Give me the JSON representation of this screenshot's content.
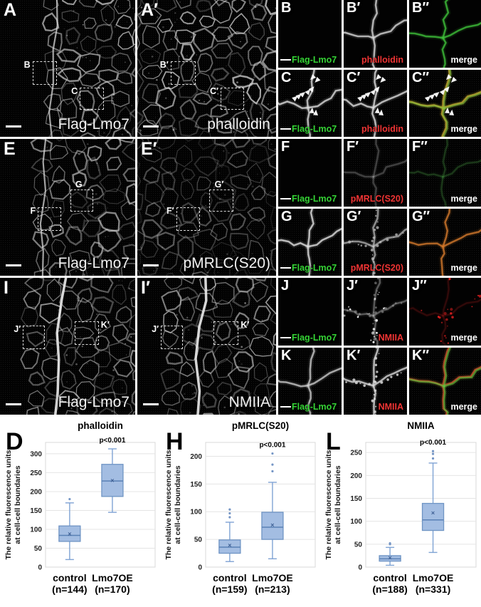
{
  "figure": {
    "description": "Lmo7 overexpression microscopy figure with quantification box plots"
  },
  "colors": {
    "flag_green": "#35d435",
    "stain_red": "#ef3434",
    "merge_white": "#ffffff",
    "box_fill": "#a3bde2",
    "box_stroke": "#6f94c4",
    "whisker": "#7fa3d4",
    "grid_line": "#e4e4e4",
    "plot_border": "#d8d8d8"
  },
  "microscopy": {
    "rows": [
      {
        "large": [
          {
            "corner": "A",
            "stain": "Flag-Lmo7",
            "rois": [
              "B",
              "C"
            ]
          },
          {
            "corner": "A′",
            "stain": "phalloidin",
            "rois": [
              "B′",
              "C′"
            ]
          }
        ],
        "small": [
          {
            "corner": "B",
            "bl": "Flag-Lmo7"
          },
          {
            "corner": "B′",
            "br": "phalloidin",
            "br_color": "stain_red"
          },
          {
            "corner": "B″",
            "br": "merge",
            "br_color": "merge_white"
          },
          {
            "corner": "C",
            "bl": "Flag-Lmo7"
          },
          {
            "corner": "C′",
            "br": "phalloidin",
            "br_color": "stain_red"
          },
          {
            "corner": "C″",
            "br": "merge",
            "br_color": "merge_white"
          }
        ]
      },
      {
        "large": [
          {
            "corner": "E",
            "stain": "Flag-Lmo7",
            "rois": [
              "G",
              "F"
            ]
          },
          {
            "corner": "E′",
            "stain": "pMRLC(S20)",
            "rois": [
              "G′",
              "F′"
            ]
          }
        ],
        "small": [
          {
            "corner": "F",
            "bl": "Flag-Lmo7"
          },
          {
            "corner": "F′",
            "br": "pMRLC(S20)",
            "br_color": "stain_red"
          },
          {
            "corner": "F″",
            "br": "merge",
            "br_color": "merge_white"
          },
          {
            "corner": "G",
            "bl": "Flag-Lmo7"
          },
          {
            "corner": "G′",
            "br": "pMRLC(S20)",
            "br_color": "stain_red"
          },
          {
            "corner": "G″",
            "br": "merge",
            "br_color": "merge_white"
          }
        ]
      },
      {
        "large": [
          {
            "corner": "I",
            "stain": "Flag-Lmo7",
            "rois": [
              "J′",
              "K′"
            ]
          },
          {
            "corner": "I′",
            "stain": "NMIIA",
            "rois": [
              "J′",
              "K′"
            ]
          }
        ],
        "small": [
          {
            "corner": "J",
            "bl": "Flag-Lmo7"
          },
          {
            "corner": "J′",
            "br": "NMIIA",
            "br_color": "stain_red"
          },
          {
            "corner": "J″",
            "br": "merge",
            "br_color": "merge_white"
          },
          {
            "corner": "K",
            "bl": "Flag-Lmo7"
          },
          {
            "corner": "K′",
            "br": "NMIIA",
            "br_color": "stain_red"
          },
          {
            "corner": "K″",
            "br": "merge",
            "br_color": "merge_white"
          }
        ]
      }
    ]
  },
  "chart_data": [
    {
      "type": "box",
      "letter": "D",
      "title": "phalloidin",
      "pvalue": "p<0.001",
      "ylabel": [
        "The relative fluorescence units",
        "at cell-cell boundaries"
      ],
      "ylim": [
        0,
        330
      ],
      "yticks": [
        0,
        50,
        100,
        150,
        200,
        250,
        300
      ],
      "categories": [
        {
          "label": "control",
          "n": "(n=144)"
        },
        {
          "label": "Lmo7OE",
          "n": "(n=170)"
        }
      ],
      "series": [
        {
          "name": "control",
          "low": 20,
          "q1": 68,
          "median": 84,
          "mean": 88,
          "q3": 109,
          "high": 170,
          "outliers": [
            180
          ]
        },
        {
          "name": "Lmo7OE",
          "low": 145,
          "q1": 187,
          "median": 228,
          "mean": 229,
          "q3": 272,
          "high": 313,
          "outliers": []
        }
      ]
    },
    {
      "type": "box",
      "letter": "H",
      "title": "pMRLC(S20)",
      "pvalue": "p<0.001",
      "ylabel": [
        "The relative fluorescence units",
        "at cell-cell boundaries"
      ],
      "ylim": [
        0,
        225
      ],
      "yticks": [
        0,
        50,
        100,
        150,
        200
      ],
      "categories": [
        {
          "label": "control",
          "n": "(n=159)"
        },
        {
          "label": "Lmo7OE",
          "n": "(n=213)"
        }
      ],
      "series": [
        {
          "name": "control",
          "low": 10,
          "q1": 25,
          "median": 36,
          "mean": 39,
          "q3": 49,
          "high": 81,
          "outliers": [
            90,
            97,
            104
          ]
        },
        {
          "name": "Lmo7OE",
          "low": 15,
          "q1": 50,
          "median": 72,
          "mean": 76,
          "q3": 99,
          "high": 153,
          "outliers": [
            173,
            185,
            205
          ]
        }
      ]
    },
    {
      "type": "box",
      "letter": "L",
      "title": "NMIIA",
      "pvalue": "p<0.001",
      "ylabel": [
        "The relative fluorescence units",
        "at cell-cell boundaries"
      ],
      "ylim": [
        0,
        272
      ],
      "yticks": [
        0,
        50,
        100,
        150,
        200,
        250
      ],
      "categories": [
        {
          "label": "control",
          "n": "(n=188)"
        },
        {
          "label": "Lmo7OE",
          "n": "(n=331)"
        }
      ],
      "series": [
        {
          "name": "control",
          "low": 4,
          "q1": 13,
          "median": 18,
          "mean": 20,
          "q3": 25,
          "high": 43,
          "outliers": [
            50,
            52
          ]
        },
        {
          "name": "Lmo7OE",
          "low": 32,
          "q1": 80,
          "median": 103,
          "mean": 118,
          "q3": 139,
          "high": 227,
          "outliers": [
            237,
            247,
            253
          ]
        }
      ]
    }
  ]
}
